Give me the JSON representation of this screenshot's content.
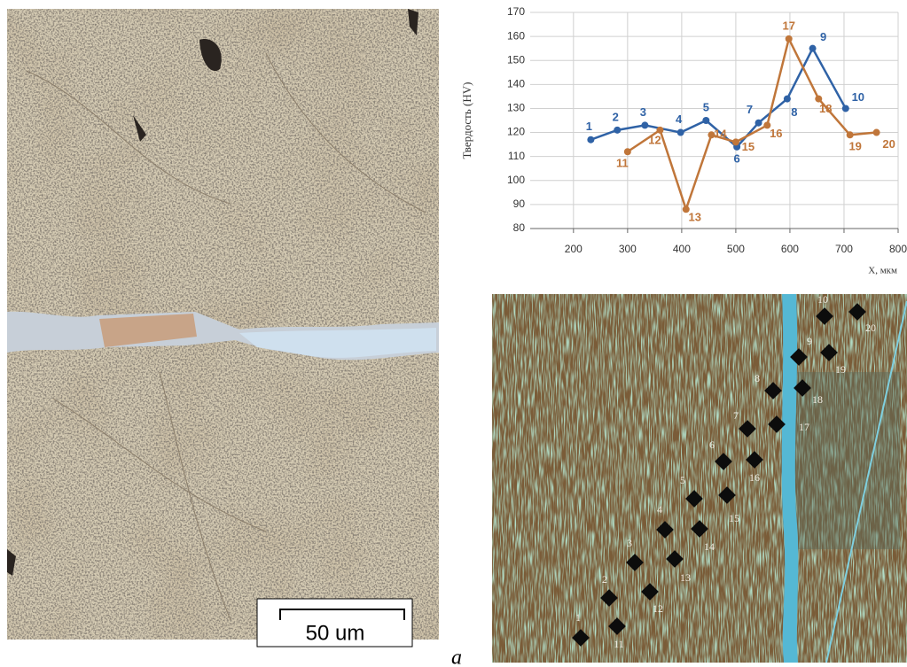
{
  "figure": {
    "panel_label": "a"
  },
  "left_image": {
    "scale_bar": "50 um"
  },
  "chart_data": {
    "type": "line",
    "ylabel": "Твердость  (HV)",
    "xlabel": "X, мкм",
    "xlim": [
      120,
      800
    ],
    "ylim": [
      80,
      170
    ],
    "xticks": [
      200,
      300,
      400,
      500,
      600,
      700,
      800
    ],
    "yticks": [
      80,
      90,
      100,
      110,
      120,
      130,
      140,
      150,
      160,
      170
    ],
    "grid": true,
    "series": [
      {
        "color": "#2f62a6",
        "x": [
          232,
          281,
          332,
          398,
          445,
          502,
          542,
          595,
          642,
          703
        ],
        "values": [
          117,
          121,
          123,
          120,
          125,
          114,
          124,
          134,
          155,
          130
        ],
        "point_labels": [
          "1",
          "2",
          "3",
          "4",
          "5",
          "6",
          "7",
          "8",
          "9",
          "10"
        ]
      },
      {
        "color": "#c0763a",
        "x": [
          300,
          360,
          408,
          455,
          500,
          558,
          598,
          653,
          711,
          760
        ],
        "values": [
          112,
          121,
          88,
          119,
          116,
          123,
          159,
          134,
          119,
          120
        ],
        "point_labels": [
          "11",
          "12",
          "13",
          "14",
          "15",
          "16",
          "17",
          "18",
          "19",
          "20"
        ]
      }
    ]
  },
  "right_image": {
    "indents": [
      "1",
      "2",
      "3",
      "4",
      "5",
      "6",
      "7",
      "8",
      "9",
      "10",
      "11",
      "12",
      "13",
      "14",
      "15",
      "16",
      "17",
      "18",
      "19",
      "20"
    ]
  }
}
